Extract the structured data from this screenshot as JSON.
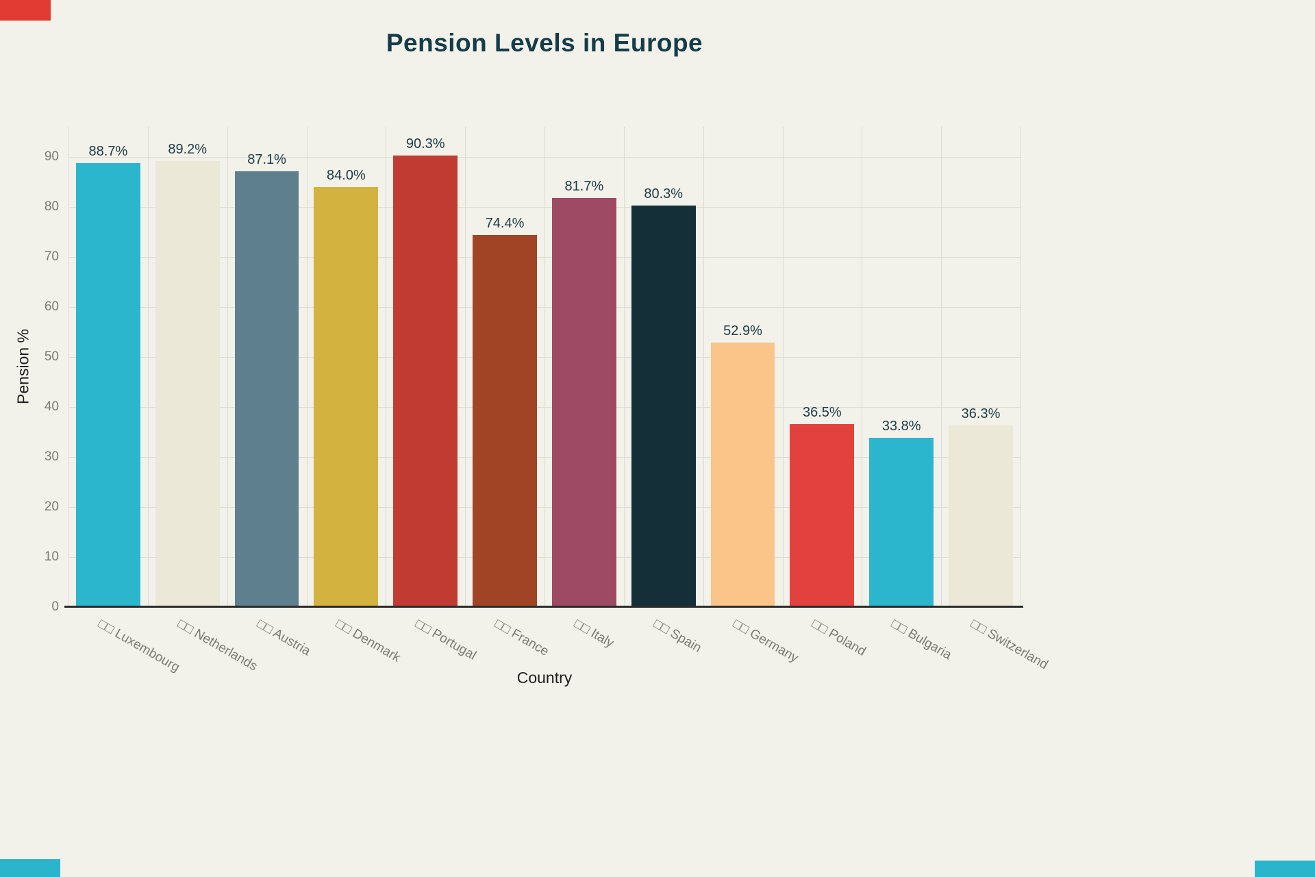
{
  "chart_data": {
    "type": "bar",
    "title": "Pension Levels in Europe",
    "xlabel": "Country",
    "ylabel": "Pension %",
    "ylim": [
      0,
      96
    ],
    "yticks": [
      0,
      10,
      20,
      30,
      40,
      50,
      60,
      70,
      80,
      90
    ],
    "grid": true,
    "legend": false,
    "flag_placeholder": "□□",
    "categories": [
      "Luxembourg",
      "Netherlands",
      "Austria",
      "Denmark",
      "Portugal",
      "France",
      "Italy",
      "Spain",
      "Germany",
      "Poland",
      "Bulgaria",
      "Switzerland"
    ],
    "x_tick_labels": [
      "□□ Luxembourg",
      "□□ Netherlands",
      "□□ Austria",
      "□□ Denmark",
      "□□ Portugal",
      "□□ France",
      "□□ Italy",
      "□□ Spain",
      "□□ Germany",
      "□□ Poland",
      "□□ Bulgaria",
      "□□ Switzerland"
    ],
    "values": [
      88.7,
      89.2,
      87.1,
      84.0,
      90.3,
      74.4,
      81.7,
      80.3,
      52.9,
      36.5,
      33.8,
      36.3
    ],
    "value_labels": [
      "88.7%",
      "89.2%",
      "87.1%",
      "84.0%",
      "90.3%",
      "74.4%",
      "81.7%",
      "80.3%",
      "52.9%",
      "36.5%",
      "33.8%",
      "36.3%"
    ],
    "bar_colors": [
      "#2cb6cd",
      "#ece8d8",
      "#5e7f8d",
      "#d4b240",
      "#c23b32",
      "#a04425",
      "#9e4a64",
      "#142f38",
      "#fbc488",
      "#e2413e",
      "#2cb6cd",
      "#ece8d8"
    ]
  },
  "colors": {
    "background": "#f2f1ea",
    "title": "#143c49",
    "axis_line": "#2b2b2b",
    "grid_line": "#dedbd1",
    "tick_label": "#7b7a73",
    "value_label": "#1d3a44",
    "axis_title": "#1f1f1f",
    "accent_red": "#e13b34",
    "accent_teal": "#2ab5cd"
  }
}
